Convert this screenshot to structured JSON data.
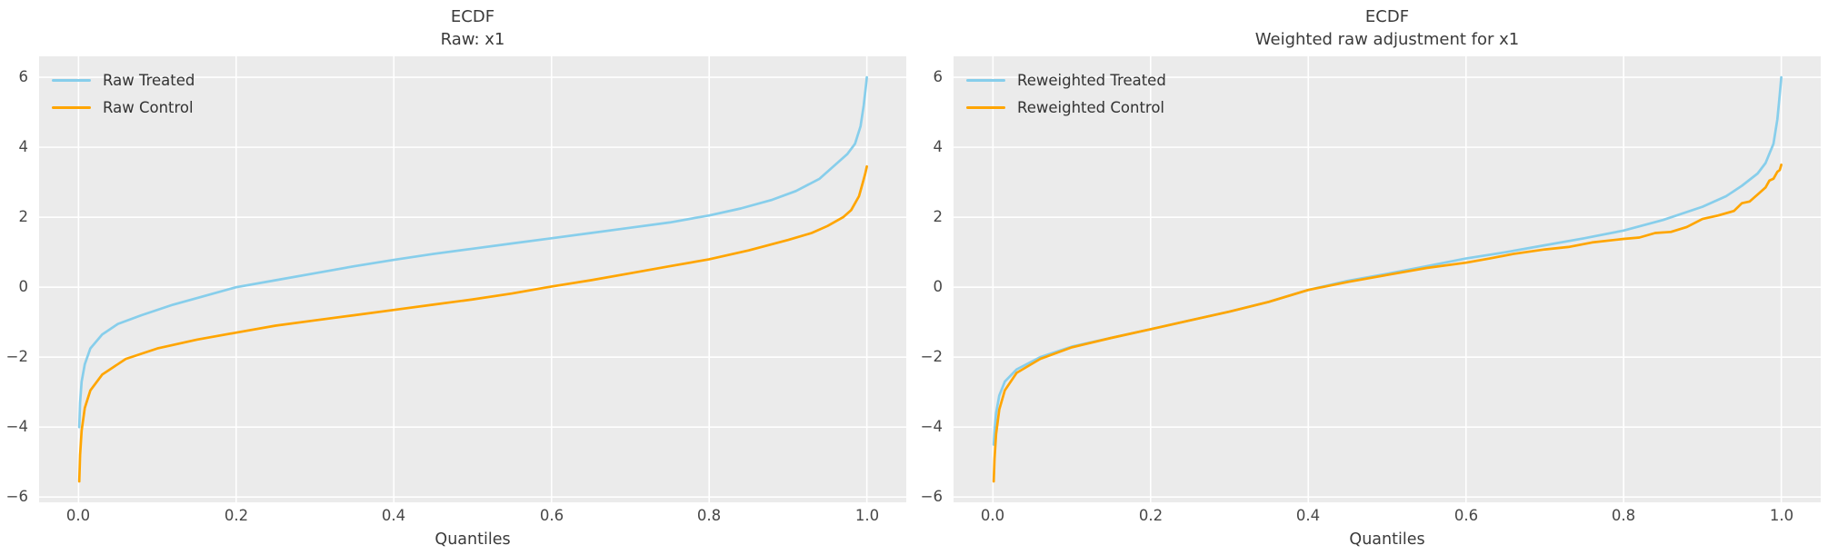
{
  "figure": {
    "background": "#ffffff",
    "axes_background": "#ebebeb",
    "grid_color": "#ffffff",
    "tick_label_color": "#474747",
    "title_color": "#3a3a3a"
  },
  "chart_data": [
    {
      "type": "line",
      "title": "ECDF",
      "subtitle": "Raw: x1",
      "xlabel": "Quantiles",
      "ylabel": "",
      "grid": true,
      "legend_position": "upper left",
      "xlim": [
        -0.05,
        1.05
      ],
      "ylim": [
        -6.15,
        6.6
      ],
      "xticks": {
        "values": [
          0.0,
          0.2,
          0.4,
          0.6,
          0.8,
          1.0
        ],
        "labels": [
          "0.0",
          "0.2",
          "0.4",
          "0.6",
          "0.8",
          "1.0"
        ]
      },
      "yticks": {
        "values": [
          6,
          4,
          2,
          0,
          -2,
          -4,
          -6
        ],
        "labels": [
          "6",
          "4",
          "2",
          "0",
          "−2",
          "−4",
          "−6"
        ]
      },
      "series": [
        {
          "name": "Raw Treated",
          "color": "#87ceeb",
          "x": [
            0.001,
            0.002,
            0.004,
            0.008,
            0.015,
            0.03,
            0.05,
            0.08,
            0.12,
            0.16,
            0.2,
            0.25,
            0.3,
            0.35,
            0.4,
            0.45,
            0.5,
            0.55,
            0.6,
            0.65,
            0.7,
            0.75,
            0.8,
            0.84,
            0.88,
            0.91,
            0.94,
            0.96,
            0.975,
            0.985,
            0.992,
            0.996,
            0.999,
            1.0
          ],
          "y": [
            -4.0,
            -3.3,
            -2.7,
            -2.2,
            -1.75,
            -1.35,
            -1.05,
            -0.8,
            -0.5,
            -0.25,
            0.0,
            0.2,
            0.4,
            0.6,
            0.78,
            0.95,
            1.1,
            1.25,
            1.4,
            1.55,
            1.7,
            1.85,
            2.05,
            2.25,
            2.5,
            2.75,
            3.1,
            3.5,
            3.8,
            4.1,
            4.6,
            5.2,
            5.8,
            6.0
          ]
        },
        {
          "name": "Raw Control",
          "color": "#ffa500",
          "x": [
            0.001,
            0.002,
            0.004,
            0.008,
            0.015,
            0.03,
            0.06,
            0.1,
            0.15,
            0.2,
            0.25,
            0.3,
            0.35,
            0.4,
            0.45,
            0.5,
            0.55,
            0.6,
            0.65,
            0.7,
            0.75,
            0.8,
            0.85,
            0.9,
            0.93,
            0.95,
            0.97,
            0.98,
            0.99,
            0.995,
            0.998,
            1.0
          ],
          "y": [
            -5.55,
            -4.8,
            -4.1,
            -3.45,
            -2.95,
            -2.5,
            -2.05,
            -1.75,
            -1.5,
            -1.3,
            -1.1,
            -0.95,
            -0.8,
            -0.65,
            -0.5,
            -0.35,
            -0.18,
            0.02,
            0.2,
            0.4,
            0.6,
            0.8,
            1.05,
            1.35,
            1.55,
            1.75,
            2.0,
            2.2,
            2.6,
            3.0,
            3.25,
            3.45
          ]
        }
      ]
    },
    {
      "type": "line",
      "title": "ECDF",
      "subtitle": "Weighted raw adjustment for x1",
      "xlabel": "Quantiles",
      "ylabel": "",
      "grid": true,
      "legend_position": "upper left",
      "xlim": [
        -0.05,
        1.05
      ],
      "ylim": [
        -6.15,
        6.6
      ],
      "xticks": {
        "values": [
          0.0,
          0.2,
          0.4,
          0.6,
          0.8,
          1.0
        ],
        "labels": [
          "0.0",
          "0.2",
          "0.4",
          "0.6",
          "0.8",
          "1.0"
        ]
      },
      "yticks": {
        "values": [
          6,
          4,
          2,
          0,
          -2,
          -4,
          -6
        ],
        "labels": [
          "6",
          "4",
          "2",
          "0",
          "−2",
          "−4",
          "−6"
        ]
      },
      "series": [
        {
          "name": "Reweighted Treated",
          "color": "#87ceeb",
          "x": [
            0.001,
            0.002,
            0.004,
            0.008,
            0.015,
            0.03,
            0.06,
            0.1,
            0.15,
            0.2,
            0.25,
            0.3,
            0.35,
            0.4,
            0.45,
            0.5,
            0.55,
            0.6,
            0.65,
            0.7,
            0.75,
            0.8,
            0.85,
            0.9,
            0.93,
            0.95,
            0.97,
            0.98,
            0.99,
            0.995,
            0.998,
            1.0
          ],
          "y": [
            -4.5,
            -4.1,
            -3.6,
            -3.1,
            -2.7,
            -2.35,
            -2.0,
            -1.7,
            -1.45,
            -1.2,
            -0.95,
            -0.7,
            -0.42,
            -0.08,
            0.18,
            0.38,
            0.6,
            0.82,
            1.0,
            1.2,
            1.4,
            1.62,
            1.92,
            2.3,
            2.6,
            2.9,
            3.25,
            3.55,
            4.1,
            4.8,
            5.5,
            6.0
          ]
        },
        {
          "name": "Reweighted Control",
          "color": "#ffa500",
          "x": [
            0.001,
            0.002,
            0.004,
            0.008,
            0.015,
            0.03,
            0.06,
            0.1,
            0.15,
            0.2,
            0.25,
            0.3,
            0.35,
            0.4,
            0.45,
            0.5,
            0.55,
            0.6,
            0.63,
            0.66,
            0.7,
            0.73,
            0.76,
            0.8,
            0.82,
            0.84,
            0.86,
            0.88,
            0.9,
            0.92,
            0.94,
            0.95,
            0.96,
            0.97,
            0.98,
            0.985,
            0.99,
            0.995,
            0.998,
            1.0
          ],
          "y": [
            -5.55,
            -4.9,
            -4.2,
            -3.5,
            -2.95,
            -2.45,
            -2.05,
            -1.72,
            -1.45,
            -1.2,
            -0.95,
            -0.7,
            -0.42,
            -0.08,
            0.15,
            0.35,
            0.55,
            0.7,
            0.82,
            0.95,
            1.08,
            1.15,
            1.28,
            1.38,
            1.42,
            1.55,
            1.58,
            1.72,
            1.95,
            2.05,
            2.18,
            2.4,
            2.45,
            2.65,
            2.85,
            3.05,
            3.1,
            3.3,
            3.35,
            3.5
          ]
        }
      ]
    }
  ]
}
